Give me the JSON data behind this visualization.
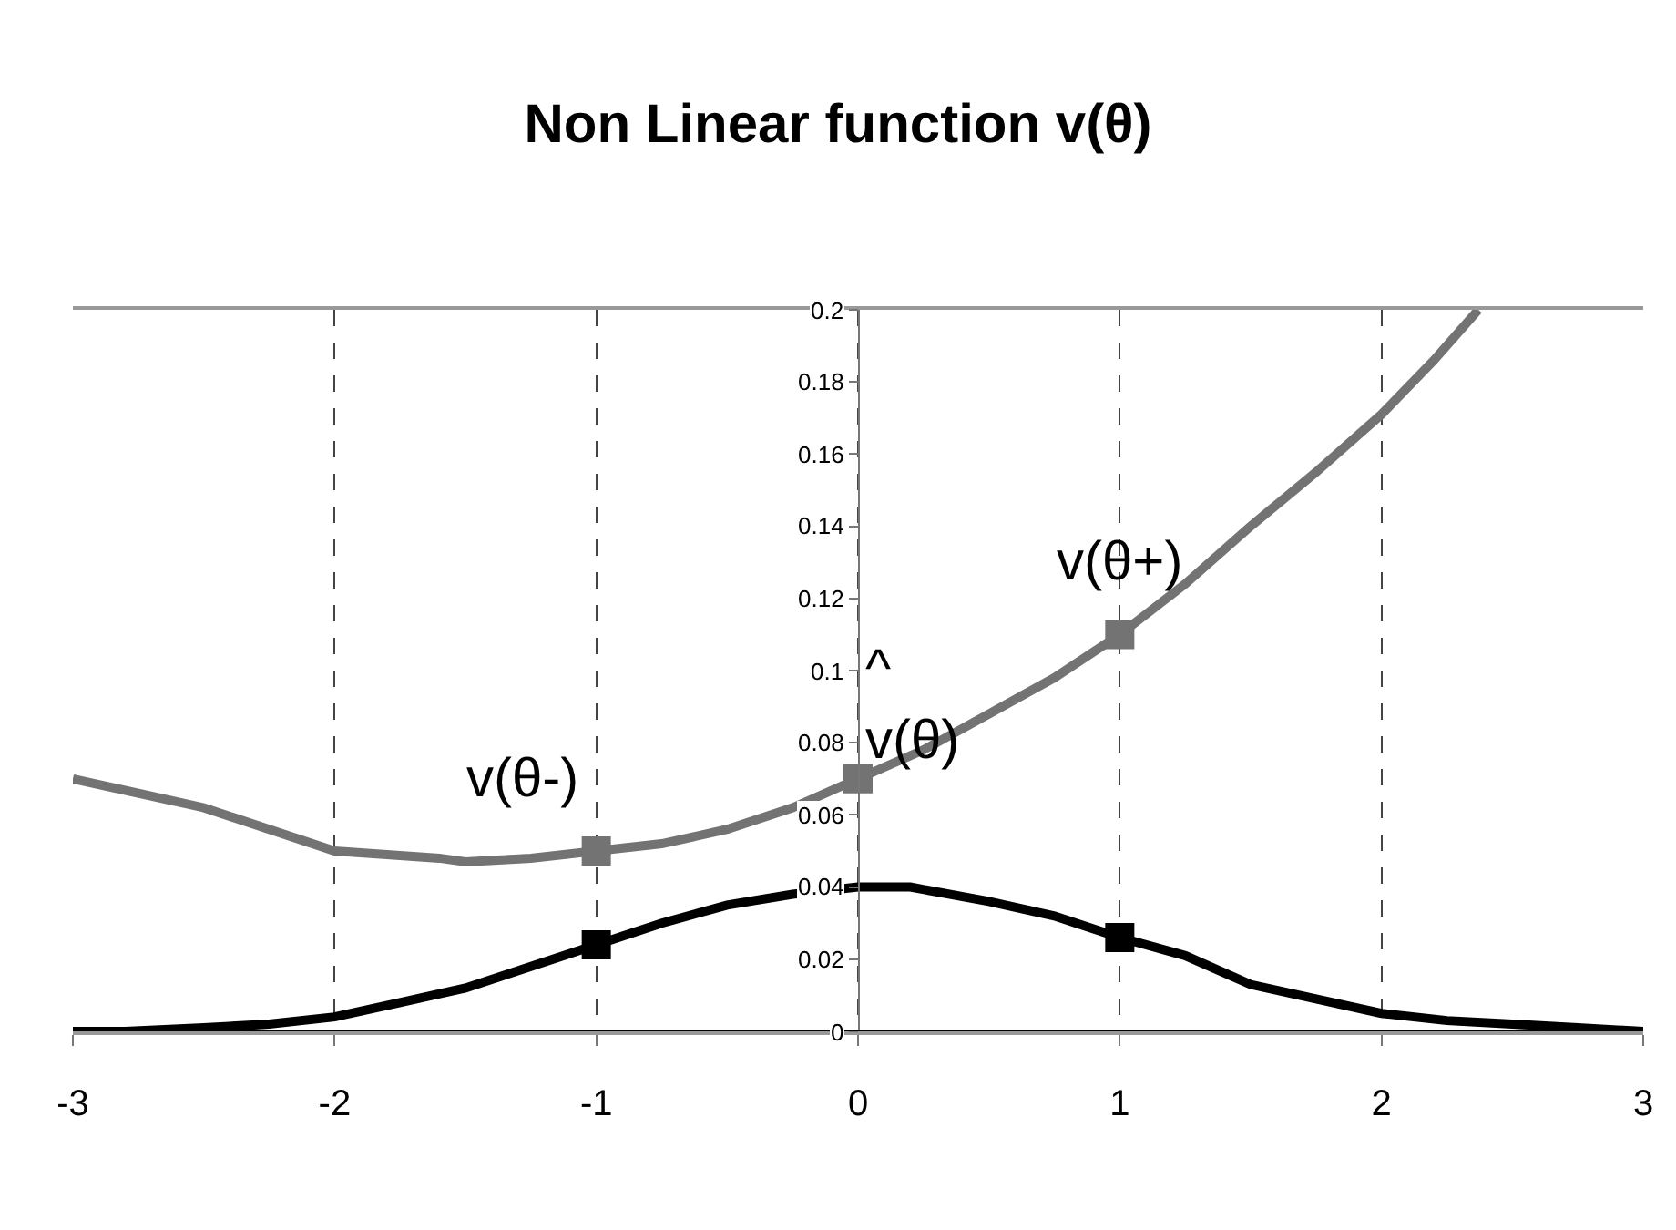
{
  "chart_data": {
    "type": "line",
    "title": "Non Linear function v(θ)",
    "xlim": [
      -3,
      3
    ],
    "xticks": [
      -3,
      -2,
      -1,
      0,
      1,
      2,
      3
    ],
    "ylim": [
      0,
      0.2
    ],
    "yticks": [
      0,
      0.02,
      0.04,
      0.06,
      0.08,
      0.1,
      0.12,
      0.14,
      0.16,
      0.18,
      0.2
    ],
    "grid": "x",
    "marker": "none",
    "series": [
      {
        "color": "#737373",
        "x": [
          -3,
          -2.75,
          -2.5,
          -2.25,
          -2,
          -1.8,
          -1.6,
          -1.5,
          -1.25,
          -1,
          -0.75,
          -0.5,
          -0.25,
          0,
          0.25,
          0.5,
          0.75,
          1,
          1.25,
          1.5,
          1.75,
          2,
          2.2,
          2.37
        ],
        "values": [
          0.07,
          0.066,
          0.062,
          0.056,
          0.05,
          0.049,
          0.048,
          0.047,
          0.048,
          0.05,
          0.052,
          0.056,
          0.062,
          0.07,
          0.078,
          0.088,
          0.098,
          0.11,
          0.124,
          0.14,
          0.155,
          0.171,
          0.186,
          0.2
        ]
      },
      {
        "color": "#000000",
        "x": [
          -3,
          -2.8,
          -2.5,
          -2.25,
          -2,
          -1.75,
          -1.5,
          -1.25,
          -1,
          -0.75,
          -0.5,
          -0.25,
          0,
          0.2,
          0.5,
          0.75,
          1,
          1.25,
          1.5,
          1.75,
          2,
          2.25,
          2.5,
          2.75,
          3
        ],
        "values": [
          0,
          0,
          0.001,
          0.002,
          0.004,
          0.008,
          0.012,
          0.018,
          0.024,
          0.03,
          0.035,
          0.038,
          0.04,
          0.04,
          0.036,
          0.032,
          0.026,
          0.021,
          0.013,
          0.009,
          0.005,
          0.003,
          0.002,
          0.001,
          0
        ]
      },
      {
        "type": "scatter",
        "marker": "square",
        "color": "#737373",
        "x": [
          -1,
          0,
          1
        ],
        "values": [
          0.05,
          0.07,
          0.11
        ]
      },
      {
        "type": "scatter",
        "marker": "square",
        "color": "#000000",
        "x": [
          -1,
          1
        ],
        "values": [
          0.024,
          0.026
        ]
      }
    ],
    "annotations": [
      {
        "text": "v(θ-)",
        "x": -1,
        "y": 0.05
      },
      {
        "text": "^\nv(θ)",
        "x": 0,
        "y": 0.07
      },
      {
        "text": "v(θ+)",
        "x": 1,
        "y": 0.11
      }
    ]
  }
}
